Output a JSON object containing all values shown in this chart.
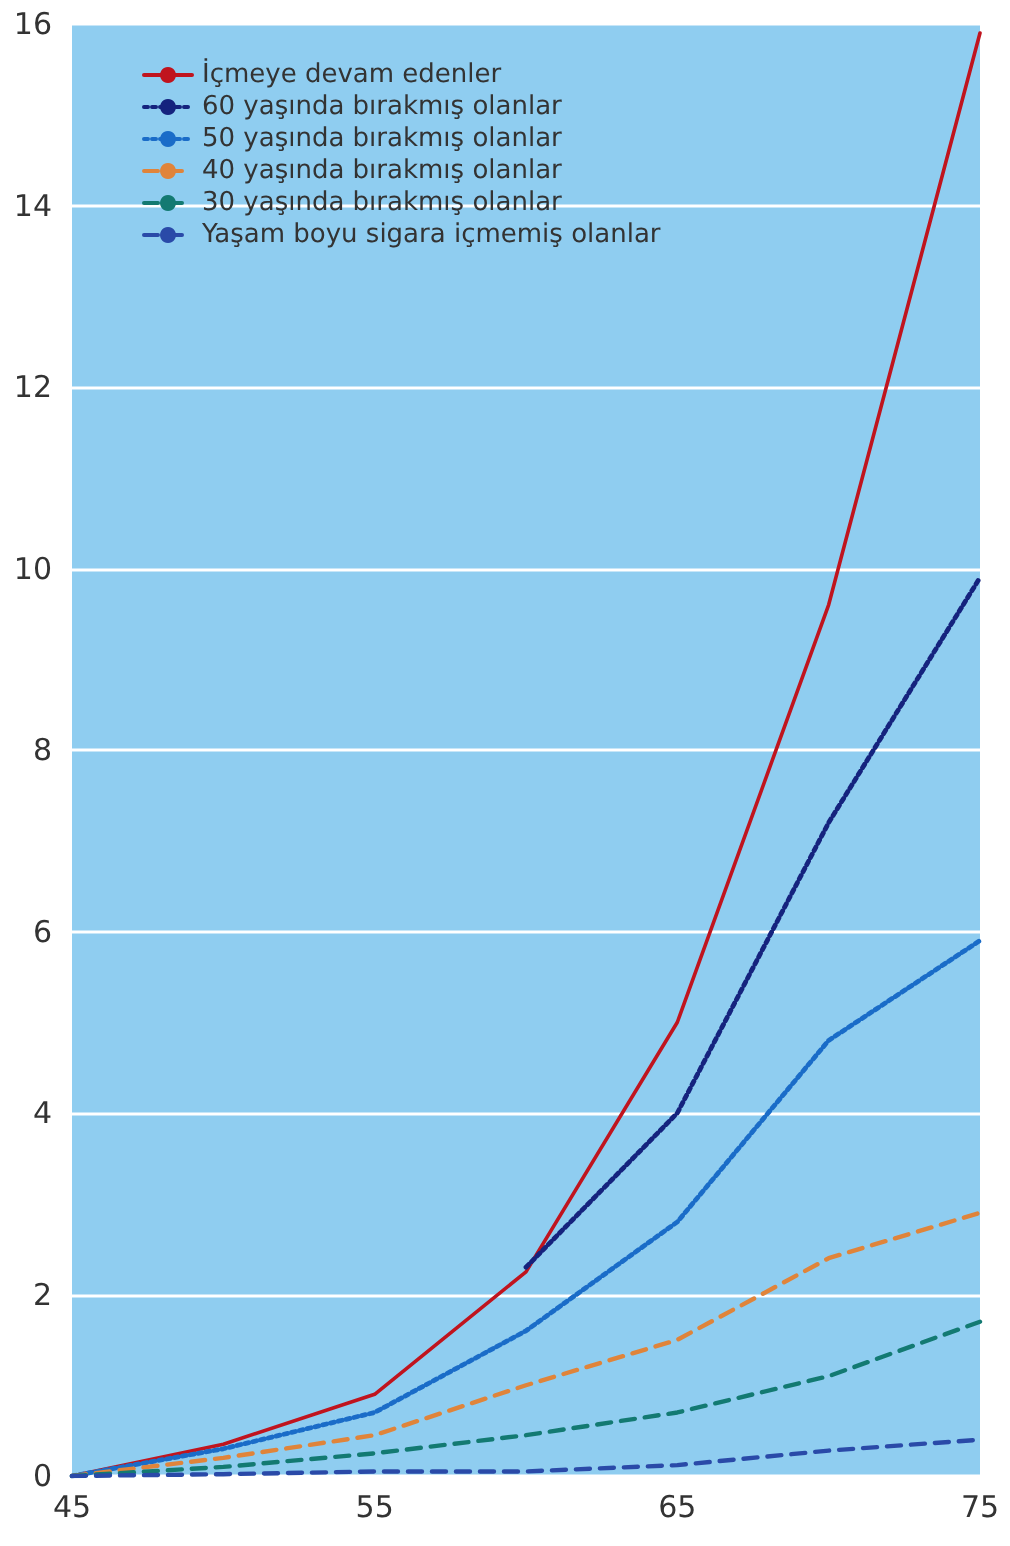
{
  "chart_data": {
    "type": "line",
    "x": [
      45,
      50,
      55,
      60,
      65,
      70,
      75
    ],
    "series": [
      {
        "name": "İçmeye devam edenler",
        "color": "#c0141e",
        "line_style": "solid",
        "values": [
          0,
          0.35,
          0.9,
          2.25,
          5.0,
          9.6,
          15.9
        ]
      },
      {
        "name": "60 yaşında bırakmış olanlar",
        "color": "#15237e",
        "line_style": "dotted",
        "values": [
          null,
          null,
          null,
          2.3,
          4.0,
          7.2,
          9.9
        ]
      },
      {
        "name": "50 yaşında bırakmış olanlar",
        "color": "#1a6cc8",
        "line_style": "dotted",
        "values": [
          0,
          0.3,
          0.7,
          1.6,
          2.8,
          4.8,
          5.9
        ]
      },
      {
        "name": "40 yaşında bırakmış olanlar",
        "color": "#e0843a",
        "line_style": "dashed",
        "values": [
          0,
          0.2,
          0.45,
          1.0,
          1.5,
          2.4,
          2.9
        ]
      },
      {
        "name": "30 yaşında bırakmış olanlar",
        "color": "#137a72",
        "line_style": "dashed",
        "values": [
          0,
          0.1,
          0.25,
          0.45,
          0.7,
          1.1,
          1.7
        ]
      },
      {
        "name": "Yaşam boyu sigara içmemiş olanlar",
        "color": "#2a4aa8",
        "line_style": "dashed",
        "values": [
          0,
          0.02,
          0.05,
          0.05,
          0.12,
          0.28,
          0.4
        ]
      }
    ],
    "xlim": [
      45,
      75
    ],
    "xticks": [
      45,
      55,
      65,
      75
    ],
    "ylim": [
      0,
      16
    ],
    "yticks": [
      0,
      2,
      4,
      6,
      8,
      10,
      12,
      14,
      16
    ],
    "grid": "y",
    "legend": "top left",
    "marker": "none"
  }
}
